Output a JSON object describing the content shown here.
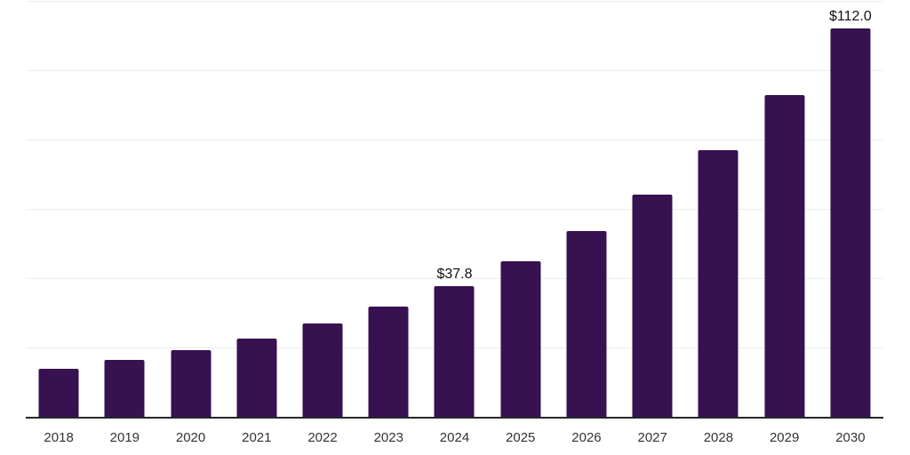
{
  "chart_data": {
    "type": "bar",
    "title": "",
    "xlabel": "",
    "ylabel": "",
    "categories": [
      "2018",
      "2019",
      "2020",
      "2021",
      "2022",
      "2023",
      "2024",
      "2025",
      "2026",
      "2027",
      "2028",
      "2029",
      "2030"
    ],
    "values": [
      13.8,
      16.3,
      19.2,
      22.6,
      26.8,
      31.7,
      37.8,
      44.9,
      53.5,
      64.1,
      76.8,
      92.7,
      112.0
    ],
    "labeled_bars": {
      "2024": "$37.8",
      "2030": "$112.0"
    },
    "value_prefix": "$",
    "ylim": [
      0,
      120
    ],
    "gridline_step": 20,
    "grid": "horizontal",
    "y_tick_labels_visible": false,
    "legend": "none"
  },
  "colors": {
    "bar": "#371150",
    "gridline": "#ededed",
    "axis_line": "#26262a",
    "tick_label": "#333333",
    "value_label": "#111111",
    "background": "#ffffff"
  }
}
